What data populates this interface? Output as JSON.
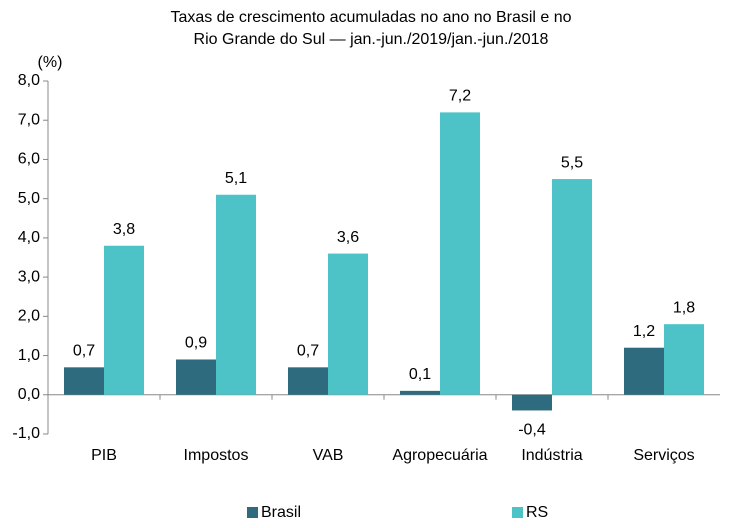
{
  "chart_data": {
    "type": "bar",
    "title": [
      "Taxas de crescimento acumuladas no ano no Brasil e no",
      "Rio Grande do Sul — jan.-jun./2019/jan.-jun./2018"
    ],
    "y_unit": "(%)",
    "categories": [
      "PIB",
      "Impostos",
      "VAB",
      "Agropecuária",
      "Indústria",
      "Serviços"
    ],
    "series": [
      {
        "name": "Brasil",
        "color": "#2e6b7e",
        "values": [
          0.7,
          0.9,
          0.7,
          0.1,
          -0.4,
          1.2
        ],
        "value_labels": [
          "0,7",
          "0,9",
          "0,7",
          "0,1",
          "-0,4",
          "1,2"
        ]
      },
      {
        "name": "RS",
        "color": "#4dc3c8",
        "values": [
          3.8,
          5.1,
          3.6,
          7.2,
          5.5,
          1.8
        ],
        "value_labels": [
          "3,8",
          "5,1",
          "3,6",
          "7,2",
          "5,5",
          "1,8"
        ]
      }
    ],
    "ylim": [
      -1,
      8
    ],
    "yticks": [
      {
        "value": -1,
        "label": "-1,0"
      },
      {
        "value": 0,
        "label": "0,0"
      },
      {
        "value": 1,
        "label": "1,0"
      },
      {
        "value": 2,
        "label": "2,0"
      },
      {
        "value": 3,
        "label": "3,0"
      },
      {
        "value": 4,
        "label": "4,0"
      },
      {
        "value": 5,
        "label": "5,0"
      },
      {
        "value": 6,
        "label": "6,0"
      },
      {
        "value": 7,
        "label": "7,0"
      },
      {
        "value": 8,
        "label": "8,0"
      }
    ],
    "legend": "bottom"
  }
}
